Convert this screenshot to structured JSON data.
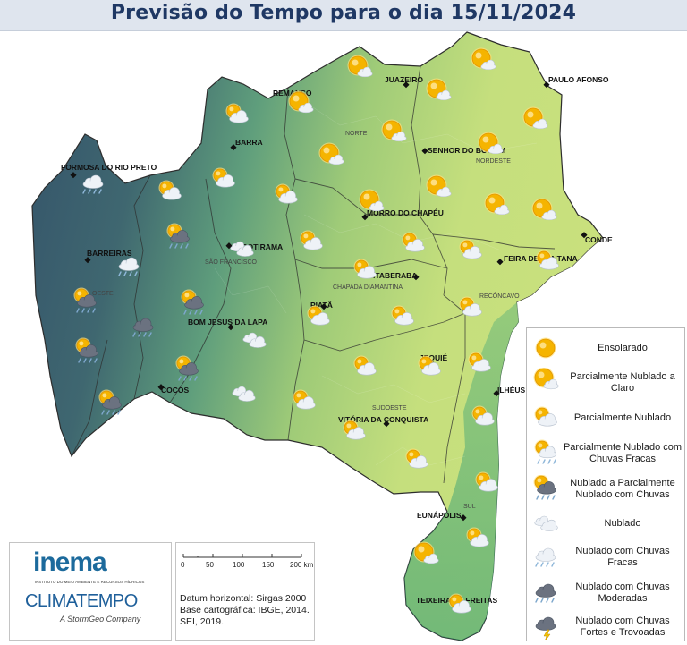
{
  "title": "Previsão do Tempo para o dia 15/11/2024",
  "legend": [
    {
      "icon": "sun-icon",
      "label": "Ensolarado"
    },
    {
      "icon": "sun-partly-cloudy-icon",
      "label": "Parcialmente Nublado a Claro"
    },
    {
      "icon": "partly-cloudy-icon",
      "label": "Parcialmente Nublado"
    },
    {
      "icon": "partly-cloudy-light-rain-icon",
      "label": "Parcialmente Nublado com Chuvas Fracas"
    },
    {
      "icon": "cloudy-partly-rain-icon",
      "label": "Nublado a Parcialmente Nublado com Chuvas"
    },
    {
      "icon": "cloudy-icon",
      "label": "Nublado"
    },
    {
      "icon": "cloudy-light-rain-icon",
      "label": "Nublado com Chuvas Fracas"
    },
    {
      "icon": "cloudy-moderate-rain-icon",
      "label": "Nublado com Chuvas Moderadas"
    },
    {
      "icon": "storm-icon",
      "label": "Nublado com Chuvas Fortes e Trovoadas"
    }
  ],
  "cities": [
    {
      "name": "REMANSO"
    },
    {
      "name": "JUAZEIRO"
    },
    {
      "name": "PAULO AFONSO"
    },
    {
      "name": "BARRA"
    },
    {
      "name": "SENHOR DO BONFIM"
    },
    {
      "name": "FORMOSA DO RIO PRETO"
    },
    {
      "name": "MORRO DO CHAPÉU"
    },
    {
      "name": "IBOTIRAMA"
    },
    {
      "name": "CONDE"
    },
    {
      "name": "BARREIRAS"
    },
    {
      "name": "FEIRA DE SANTANA"
    },
    {
      "name": "ITABERABA"
    },
    {
      "name": "PIATÃ"
    },
    {
      "name": "BOM JESUS DA LAPA"
    },
    {
      "name": "JEQUIÉ"
    },
    {
      "name": "COCOS"
    },
    {
      "name": "ILHÉUS"
    },
    {
      "name": "VITÓRIA DA CONQUISTA"
    },
    {
      "name": "EUNÁPOLIS"
    },
    {
      "name": "TEIXEIRA DE FREITAS"
    }
  ],
  "regions": [
    "NORTE",
    "NORDESTE",
    "SÃO FRANCISCO",
    "CHAPADA DIAMANTINA",
    "OESTE",
    "RECÔNCAVO",
    "SUDOESTE",
    "SUL"
  ],
  "logos": {
    "inema": "inema",
    "inema_sub": "INSTITUTO DO MEIO AMBIENTE E RECURSOS HÍDRICOS",
    "climatempo": "CLIMATEMPO",
    "stormgeo": "A StormGeo Company"
  },
  "scale": {
    "ticks": [
      "0",
      "50",
      "100",
      "150",
      "200 km"
    ],
    "datum_lines": [
      "Datum horizontal: Sirgas 2000",
      "Base cartográfica: IBGE, 2014.",
      "SEI, 2019."
    ]
  },
  "colors": {
    "title_text": "#1f3864",
    "west_dark": "#3b5c70",
    "central": "#5e9e7e",
    "east_light": "#c9e07d",
    "coast": "#3ea579",
    "sun": "#f5b400"
  }
}
